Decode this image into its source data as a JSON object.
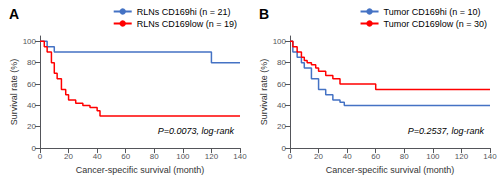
{
  "chart_data": [
    {
      "type": "step",
      "title": "A",
      "xlabel": "Cancer-specific survival (month)",
      "ylabel": "Survival rate (%)",
      "xlim": [
        0,
        140
      ],
      "ylim": [
        0,
        105
      ],
      "xticks": [
        0,
        20,
        40,
        60,
        80,
        100,
        120,
        140
      ],
      "yticks": [
        0,
        20,
        40,
        60,
        80,
        100
      ],
      "grid": false,
      "legend": "upper right",
      "annotations": [
        "P=0.0073, log-rank"
      ],
      "series": [
        {
          "name": "RLNs CD169hi (n = 21)",
          "color": "#4472C4",
          "x": [
            0,
            3,
            5,
            10,
            120,
            140
          ],
          "values": [
            100,
            100,
            95,
            90,
            80,
            80
          ]
        },
        {
          "name": "RLNs CD169low (n = 19)",
          "color": "#FF0000",
          "x": [
            0,
            3,
            5,
            8,
            10,
            12,
            15,
            18,
            20,
            25,
            30,
            35,
            40,
            42,
            120,
            140
          ],
          "values": [
            100,
            95,
            90,
            80,
            70,
            65,
            55,
            50,
            45,
            42,
            40,
            38,
            35,
            30,
            30,
            30
          ]
        }
      ]
    },
    {
      "type": "step",
      "title": "B",
      "xlabel": "Cancer-specific survival (month)",
      "ylabel": "Survival rate (%)",
      "xlim": [
        0,
        140
      ],
      "ylim": [
        0,
        105
      ],
      "xticks": [
        0,
        20,
        40,
        60,
        80,
        100,
        120,
        140
      ],
      "yticks": [
        0,
        20,
        40,
        60,
        80,
        100
      ],
      "grid": false,
      "legend": "upper right",
      "annotations": [
        "P=0.2537, log-rank"
      ],
      "series": [
        {
          "name": "Tumor CD169hi (n = 10)",
          "color": "#4472C4",
          "x": [
            0,
            2,
            5,
            8,
            10,
            15,
            20,
            25,
            30,
            35,
            38,
            120,
            140
          ],
          "values": [
            100,
            90,
            85,
            80,
            75,
            65,
            55,
            50,
            45,
            43,
            40,
            40,
            40
          ]
        },
        {
          "name": "Tumor CD169low (n = 30)",
          "color": "#FF0000",
          "x": [
            0,
            2,
            5,
            8,
            10,
            12,
            15,
            18,
            20,
            25,
            30,
            35,
            60,
            120,
            140
          ],
          "values": [
            100,
            95,
            90,
            85,
            82,
            80,
            78,
            75,
            72,
            68,
            65,
            60,
            55,
            55,
            55
          ]
        }
      ]
    }
  ]
}
